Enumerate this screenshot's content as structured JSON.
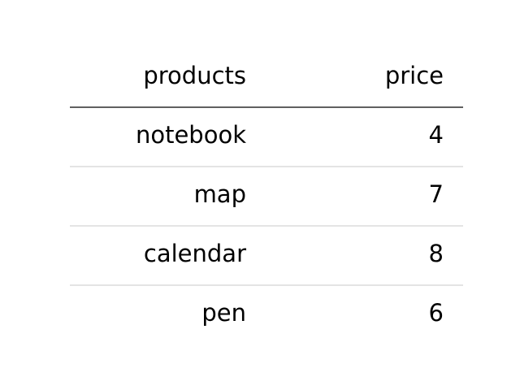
{
  "chart_data": {
    "type": "table",
    "columns": [
      "products",
      "price"
    ],
    "rows": [
      [
        "notebook",
        "4"
      ],
      [
        "map",
        "7"
      ],
      [
        "calendar",
        "8"
      ],
      [
        "pen",
        "6"
      ]
    ],
    "header_rule_color": "#000000",
    "row_rule_color": "#d3d3d3"
  }
}
